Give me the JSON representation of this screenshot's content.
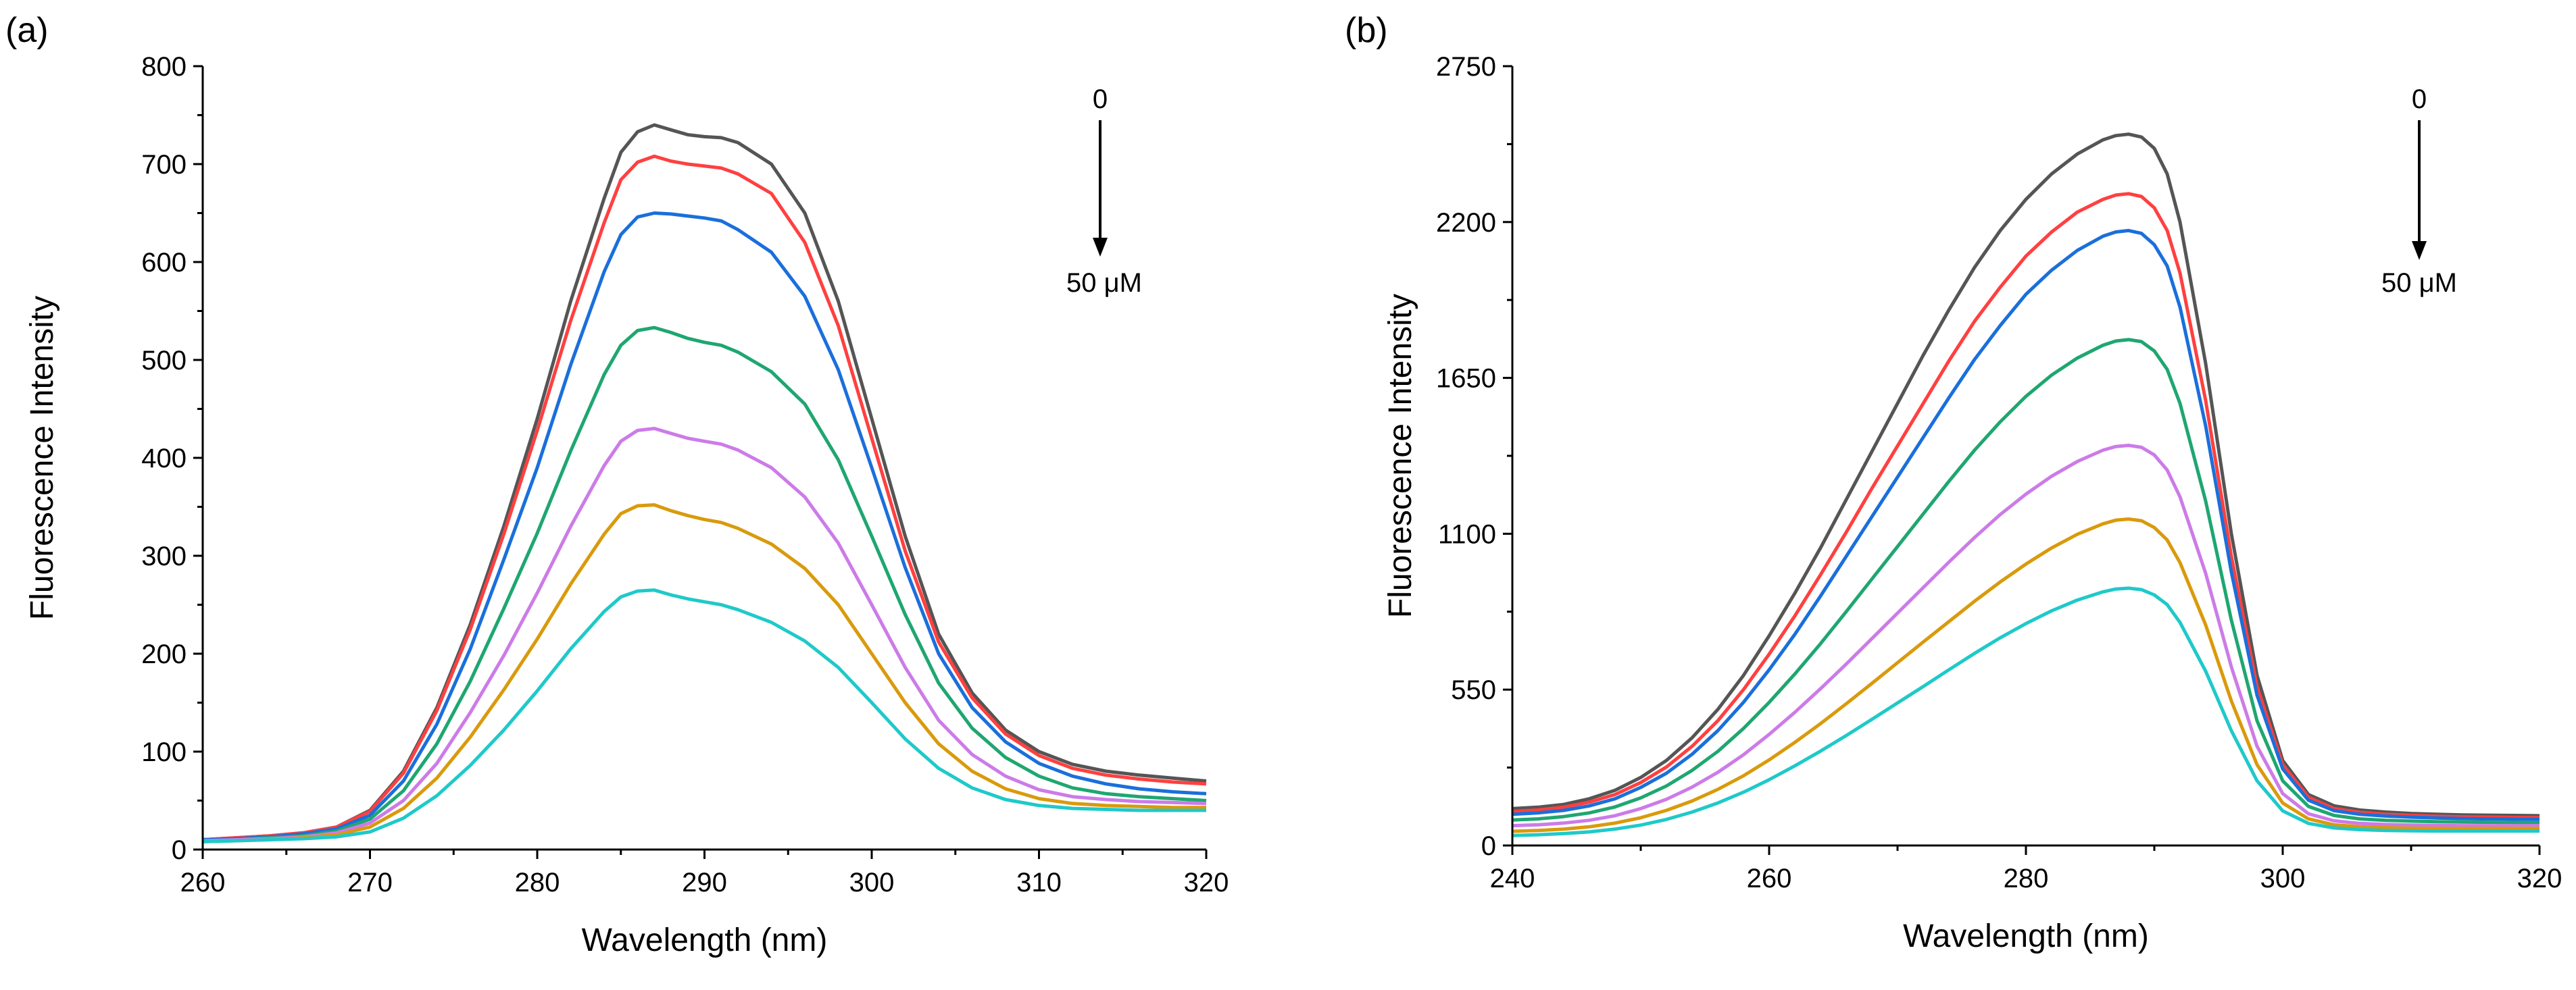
{
  "chart_data": [
    {
      "panel_label": "(a)",
      "type": "line",
      "xlabel": "Wavelength (nm)",
      "ylabel": "Fluorescence Intensity",
      "xlim": [
        260,
        320
      ],
      "ylim": [
        0,
        800
      ],
      "xticks": [
        260,
        270,
        280,
        290,
        300,
        310,
        320
      ],
      "yticks": [
        0,
        100,
        200,
        300,
        400,
        500,
        600,
        700,
        800
      ],
      "annotation": {
        "top": "0",
        "bottom": "50 μM"
      },
      "x": [
        260,
        262,
        264,
        266,
        268,
        270,
        272,
        274,
        276,
        278,
        280,
        282,
        284,
        285,
        286,
        287,
        288,
        289,
        290,
        291,
        292,
        294,
        296,
        298,
        300,
        302,
        304,
        306,
        308,
        310,
        312,
        314,
        316,
        318,
        320
      ],
      "series": [
        {
          "color": "#555555",
          "values": [
            10,
            12,
            14,
            17,
            23,
            40,
            80,
            145,
            230,
            330,
            440,
            560,
            665,
            712,
            733,
            740,
            735,
            730,
            728,
            727,
            722,
            700,
            650,
            560,
            440,
            320,
            220,
            160,
            122,
            100,
            87,
            80,
            76,
            73,
            70
          ]
        },
        {
          "color": "#ff4040",
          "values": [
            10,
            12,
            14,
            17,
            23,
            39,
            78,
            142,
            225,
            322,
            428,
            540,
            640,
            684,
            702,
            708,
            703,
            700,
            698,
            696,
            690,
            670,
            620,
            535,
            420,
            305,
            212,
            155,
            118,
            96,
            83,
            76,
            72,
            69,
            67
          ]
        },
        {
          "color": "#1a6fdb",
          "values": [
            10,
            11,
            13,
            16,
            21,
            35,
            70,
            128,
            205,
            296,
            390,
            495,
            590,
            628,
            646,
            650,
            649,
            647,
            645,
            642,
            633,
            610,
            565,
            490,
            390,
            288,
            200,
            145,
            110,
            88,
            75,
            67,
            62,
            59,
            57
          ]
        },
        {
          "color": "#1fa671",
          "values": [
            9,
            10,
            12,
            14,
            19,
            31,
            60,
            108,
            172,
            246,
            323,
            407,
            485,
            515,
            530,
            533,
            528,
            522,
            518,
            515,
            508,
            488,
            455,
            398,
            320,
            240,
            170,
            124,
            94,
            75,
            63,
            57,
            54,
            52,
            50
          ]
        },
        {
          "color": "#cc7be8",
          "values": [
            9,
            10,
            11,
            13,
            17,
            27,
            50,
            88,
            140,
            198,
            262,
            330,
            392,
            417,
            428,
            430,
            425,
            420,
            417,
            414,
            408,
            390,
            360,
            313,
            250,
            186,
            132,
            97,
            75,
            61,
            54,
            51,
            49,
            48,
            47
          ]
        },
        {
          "color": "#d99a0c",
          "values": [
            8,
            9,
            10,
            12,
            15,
            23,
            42,
            73,
            115,
            163,
            215,
            271,
            322,
            343,
            351,
            352,
            346,
            341,
            337,
            334,
            328,
            312,
            287,
            250,
            200,
            150,
            108,
            80,
            62,
            52,
            47,
            45,
            44,
            43,
            43
          ]
        },
        {
          "color": "#1fc9c9",
          "values": [
            8,
            9,
            10,
            11,
            13,
            18,
            32,
            55,
            86,
            122,
            162,
            205,
            243,
            258,
            264,
            265,
            260,
            256,
            253,
            250,
            245,
            232,
            213,
            186,
            150,
            113,
            83,
            63,
            51,
            45,
            42,
            41,
            40,
            40,
            40
          ]
        }
      ]
    },
    {
      "panel_label": "(b)",
      "type": "line",
      "xlabel": "Wavelength (nm)",
      "ylabel": "Fluorescence Intensity",
      "xlim": [
        240,
        320
      ],
      "ylim": [
        0,
        2750
      ],
      "xticks": [
        240,
        260,
        280,
        300,
        320
      ],
      "yticks": [
        0,
        550,
        1100,
        1650,
        2200,
        2750
      ],
      "annotation": {
        "top": "0",
        "bottom": "50 μM"
      },
      "x": [
        240,
        242,
        244,
        246,
        248,
        250,
        252,
        254,
        256,
        258,
        260,
        262,
        264,
        266,
        268,
        270,
        272,
        274,
        276,
        278,
        280,
        282,
        284,
        286,
        287,
        288,
        289,
        290,
        291,
        292,
        294,
        296,
        298,
        300,
        302,
        304,
        306,
        308,
        310,
        312,
        314,
        316,
        318,
        320
      ],
      "series": [
        {
          "color": "#555555",
          "values": [
            130,
            135,
            145,
            165,
            195,
            240,
            300,
            380,
            480,
            600,
            740,
            890,
            1050,
            1220,
            1390,
            1560,
            1730,
            1890,
            2040,
            2170,
            2280,
            2370,
            2440,
            2490,
            2505,
            2510,
            2500,
            2460,
            2370,
            2200,
            1700,
            1100,
            600,
            300,
            180,
            140,
            125,
            118,
            113,
            110,
            108,
            107,
            106,
            105
          ]
        },
        {
          "color": "#ff4040",
          "values": [
            120,
            125,
            135,
            153,
            180,
            222,
            277,
            350,
            440,
            550,
            675,
            810,
            955,
            1105,
            1260,
            1410,
            1560,
            1710,
            1850,
            1970,
            2080,
            2165,
            2235,
            2280,
            2295,
            2300,
            2290,
            2250,
            2170,
            2020,
            1570,
            1020,
            560,
            285,
            170,
            130,
            117,
            110,
            106,
            103,
            101,
            100,
            99,
            98
          ]
        },
        {
          "color": "#1a6fdb",
          "values": [
            110,
            115,
            124,
            140,
            165,
            205,
            255,
            322,
            405,
            505,
            620,
            745,
            880,
            1020,
            1160,
            1300,
            1440,
            1580,
            1715,
            1835,
            1945,
            2030,
            2100,
            2150,
            2165,
            2170,
            2160,
            2120,
            2045,
            1900,
            1480,
            965,
            530,
            270,
            160,
            123,
            110,
            104,
            100,
            97,
            95,
            94,
            93,
            92
          ]
        },
        {
          "color": "#1fa671",
          "values": [
            90,
            94,
            102,
            115,
            136,
            168,
            210,
            265,
            332,
            413,
            505,
            605,
            712,
            825,
            940,
            1055,
            1170,
            1285,
            1395,
            1495,
            1585,
            1660,
            1720,
            1765,
            1780,
            1785,
            1778,
            1745,
            1680,
            1560,
            1215,
            795,
            440,
            228,
            138,
            106,
            94,
            89,
            86,
            84,
            83,
            82,
            81,
            80
          ]
        },
        {
          "color": "#cc7be8",
          "values": [
            70,
            73,
            79,
            89,
            105,
            130,
            163,
            206,
            258,
            320,
            392,
            470,
            553,
            640,
            730,
            820,
            910,
            1000,
            1087,
            1168,
            1240,
            1303,
            1355,
            1395,
            1408,
            1412,
            1405,
            1378,
            1325,
            1230,
            960,
            630,
            350,
            183,
            112,
            87,
            78,
            74,
            72,
            71,
            70,
            70,
            70,
            70
          ]
        },
        {
          "color": "#d99a0c",
          "values": [
            50,
            53,
            58,
            66,
            79,
            98,
            124,
            157,
            198,
            246,
            302,
            364,
            430,
            500,
            572,
            645,
            718,
            790,
            862,
            930,
            993,
            1050,
            1098,
            1135,
            1148,
            1152,
            1146,
            1122,
            1078,
            998,
            778,
            510,
            285,
            150,
            94,
            73,
            66,
            63,
            61,
            60,
            60,
            60,
            60,
            60
          ]
        },
        {
          "color": "#1fc9c9",
          "values": [
            35,
            38,
            42,
            48,
            58,
            72,
            92,
            118,
            150,
            188,
            232,
            281,
            333,
            388,
            445,
            503,
            561,
            620,
            678,
            733,
            783,
            828,
            866,
            895,
            905,
            908,
            903,
            884,
            850,
            787,
            615,
            405,
            228,
            122,
            78,
            62,
            56,
            53,
            52,
            51,
            51,
            51,
            51,
            51
          ]
        }
      ]
    }
  ]
}
